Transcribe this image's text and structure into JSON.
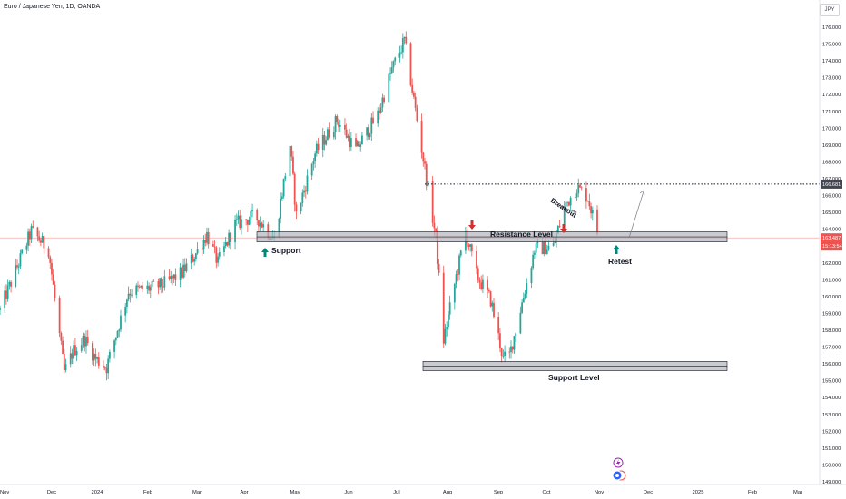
{
  "title": "Euro / Japanese Yen, 1D, OANDA",
  "currency_button": "JPY",
  "colors": {
    "up": "#26a69a",
    "down": "#ef5350",
    "zone_fill": "#b2b5be",
    "resistance_arrow": "#d32f2f",
    "support_arrow": "#00897b",
    "dotted_level": "#131722",
    "price_tag": "#ef5350",
    "level_tag": "#434651"
  },
  "price_tag": {
    "value": "163.487",
    "timer": "15:13:54"
  },
  "level_tag": {
    "value": "166.681"
  },
  "annotations": {
    "support_label": "Support",
    "resistance_label": "Resistance Level",
    "support_level_label": "Support Level",
    "breakout_label": "Breakout",
    "retest_label": "Retest"
  },
  "chart_data": {
    "type": "candlestick",
    "title": "Euro / Japanese Yen, 1D, OANDA",
    "y_axis": {
      "ticks": [
        "176.000",
        "175.000",
        "174.000",
        "173.000",
        "172.000",
        "171.000",
        "170.000",
        "169.000",
        "168.000",
        "167.000",
        "166.000",
        "165.000",
        "164.000",
        "163.000",
        "162.000",
        "161.000",
        "160.000",
        "159.000",
        "158.000",
        "157.000",
        "156.000",
        "155.000",
        "154.000",
        "153.000",
        "152.000",
        "151.000",
        "150.000",
        "149.000"
      ],
      "range": [
        148.6,
        177.0
      ]
    },
    "x_axis": {
      "ticks": [
        "Nov",
        "Dec",
        "2024",
        "Feb",
        "Mar",
        "Apr",
        "May",
        "Jun",
        "Jul",
        "Aug",
        "Sep",
        "Oct",
        "Nov",
        "Dec",
        "2025",
        "Feb",
        "Mar"
      ]
    },
    "levels": {
      "resistance_zone": [
        163.25,
        163.85
      ],
      "support_zone": [
        155.6,
        156.15
      ],
      "dotted_line": 166.681,
      "current_price": 163.487
    },
    "path_points": [
      {
        "date": "2023-10-27",
        "price": 159.2
      },
      {
        "date": "2023-11-08",
        "price": 162.0
      },
      {
        "date": "2023-11-16",
        "price": 163.9
      },
      {
        "date": "2023-11-27",
        "price": 162.8
      },
      {
        "date": "2023-12-07",
        "price": 155.5
      },
      {
        "date": "2023-12-13",
        "price": 156.8
      },
      {
        "date": "2023-12-20",
        "price": 157.5
      },
      {
        "date": "2023-12-27",
        "price": 156.3
      },
      {
        "date": "2024-01-03",
        "price": 155.8
      },
      {
        "date": "2024-01-17",
        "price": 160.3
      },
      {
        "date": "2024-01-31",
        "price": 160.5
      },
      {
        "date": "2024-02-10",
        "price": 160.8
      },
      {
        "date": "2024-02-20",
        "price": 161.4
      },
      {
        "date": "2024-03-01",
        "price": 162.7
      },
      {
        "date": "2024-03-07",
        "price": 163.7
      },
      {
        "date": "2024-03-14",
        "price": 162.0
      },
      {
        "date": "2024-03-25",
        "price": 164.3
      },
      {
        "date": "2024-04-07",
        "price": 164.8
      },
      {
        "date": "2024-04-19",
        "price": 163.4
      },
      {
        "date": "2024-04-29",
        "price": 169.0
      },
      {
        "date": "2024-05-03",
        "price": 164.8
      },
      {
        "date": "2024-05-15",
        "price": 168.5
      },
      {
        "date": "2024-05-29",
        "price": 170.5
      },
      {
        "date": "2024-06-10",
        "price": 168.7
      },
      {
        "date": "2024-06-24",
        "price": 170.8
      },
      {
        "date": "2024-07-03",
        "price": 173.5
      },
      {
        "date": "2024-07-11",
        "price": 175.2
      },
      {
        "date": "2024-07-19",
        "price": 170.5
      },
      {
        "date": "2024-07-31",
        "price": 163.5
      },
      {
        "date": "2024-08-05",
        "price": 157.4
      },
      {
        "date": "2024-08-13",
        "price": 161.2
      },
      {
        "date": "2024-08-19",
        "price": 163.8
      },
      {
        "date": "2024-08-26",
        "price": 161.3
      },
      {
        "date": "2024-09-04",
        "price": 159.8
      },
      {
        "date": "2024-09-12",
        "price": 156.3
      },
      {
        "date": "2024-09-16",
        "price": 156.5
      },
      {
        "date": "2024-09-27",
        "price": 160.8
      },
      {
        "date": "2024-10-02",
        "price": 162.8
      },
      {
        "date": "2024-10-14",
        "price": 163.0
      },
      {
        "date": "2024-10-21",
        "price": 165.3
      },
      {
        "date": "2024-10-29",
        "price": 166.5
      },
      {
        "date": "2024-11-05",
        "price": 165.9
      },
      {
        "date": "2024-11-12",
        "price": 163.487
      }
    ]
  }
}
